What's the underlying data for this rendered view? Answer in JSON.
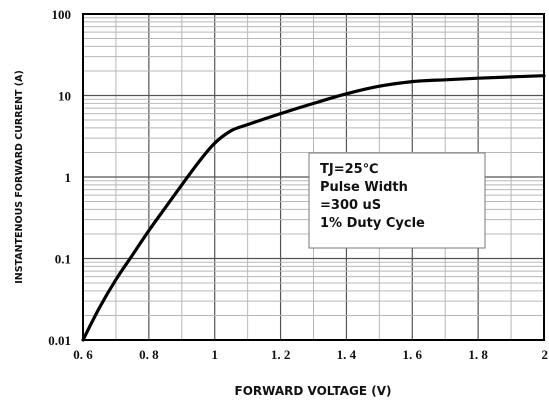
{
  "chart_data": {
    "type": "line",
    "xlabel": "FORWARD VOLTAGE (V)",
    "ylabel": "INSTANTENOUS FORWARD CURRENT (A)",
    "xlim": [
      0.6,
      2.0
    ],
    "ylim": [
      0.01,
      100
    ],
    "yscale": "log",
    "x_ticks": [
      "0. 6",
      "0. 8",
      "1",
      "1. 2",
      "1. 4",
      "1. 6",
      "1. 8",
      "2"
    ],
    "x_tick_values": [
      0.6,
      0.8,
      1.0,
      1.2,
      1.4,
      1.6,
      1.8,
      2.0
    ],
    "y_ticks": [
      "0.01",
      "0.1",
      "1",
      "10",
      "100"
    ],
    "y_tick_values": [
      0.01,
      0.1,
      1,
      10,
      100
    ],
    "grid": true,
    "annotation": [
      "TJ=25℃",
      "Pulse Width",
      "=300 uS",
      "1% Duty Cycle"
    ],
    "series": [
      {
        "x": [
          0.6,
          0.65,
          0.7,
          0.75,
          0.8,
          0.85,
          0.9,
          0.95,
          1.0,
          1.05,
          1.1,
          1.2,
          1.3,
          1.4,
          1.5,
          1.6,
          1.7,
          1.8,
          1.9,
          2.0
        ],
        "y": [
          0.01,
          0.025,
          0.055,
          0.11,
          0.22,
          0.42,
          0.8,
          1.5,
          2.6,
          3.7,
          4.4,
          6.0,
          8.0,
          10.5,
          13.0,
          14.8,
          15.6,
          16.3,
          16.9,
          17.5
        ]
      }
    ]
  }
}
